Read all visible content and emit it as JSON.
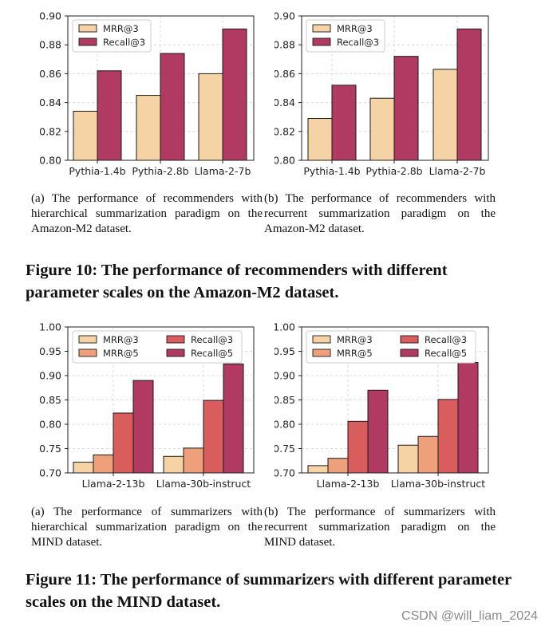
{
  "chart_data": [
    {
      "type": "bar",
      "categories": [
        "Pythia-1.4b",
        "Pythia-2.8b",
        "Llama-2-7b"
      ],
      "series": [
        {
          "name": "MRR@3",
          "values": [
            0.834,
            0.845,
            0.86
          ]
        },
        {
          "name": "Recall@3",
          "values": [
            0.862,
            0.874,
            0.891
          ]
        }
      ],
      "ylim": [
        0.8,
        0.9
      ],
      "yticks": [
        "0.80",
        "0.82",
        "0.84",
        "0.86",
        "0.88",
        "0.90"
      ],
      "colors": [
        "#f5d3a4",
        "#b13a63"
      ],
      "grid": true,
      "legend": "top-left",
      "caption": "(a) The performance of recommenders with hierarchical summarization paradigm on the Amazon-M2 dataset."
    },
    {
      "type": "bar",
      "categories": [
        "Pythia-1.4b",
        "Pythia-2.8b",
        "Llama-2-7b"
      ],
      "series": [
        {
          "name": "MRR@3",
          "values": [
            0.829,
            0.843,
            0.863
          ]
        },
        {
          "name": "Recall@3",
          "values": [
            0.852,
            0.872,
            0.891
          ]
        }
      ],
      "ylim": [
        0.8,
        0.9
      ],
      "yticks": [
        "0.80",
        "0.82",
        "0.84",
        "0.86",
        "0.88",
        "0.90"
      ],
      "colors": [
        "#f5d3a4",
        "#b13a63"
      ],
      "grid": true,
      "legend": "top-left",
      "caption": "(b) The performance of recommenders with recurrent summarization paradigm on the Amazon-M2 dataset."
    },
    {
      "type": "bar",
      "categories": [
        "Llama-2-13b",
        "Llama-30b-instruct"
      ],
      "series": [
        {
          "name": "MRR@3",
          "values": [
            0.722,
            0.734
          ]
        },
        {
          "name": "MRR@5",
          "values": [
            0.737,
            0.751
          ]
        },
        {
          "name": "Recall@3",
          "values": [
            0.823,
            0.849
          ]
        },
        {
          "name": "Recall@5",
          "values": [
            0.89,
            0.924
          ]
        }
      ],
      "ylim": [
        0.7,
        1.0
      ],
      "yticks": [
        "0.70",
        "0.75",
        "0.80",
        "0.85",
        "0.90",
        "0.95",
        "1.00"
      ],
      "colors": [
        "#f5d3a4",
        "#eea07a",
        "#d95d5d",
        "#b13a63"
      ],
      "grid": true,
      "legend": "top-left",
      "caption": "(a) The performance of summarizers with hierarchical summarization paradigm on the MIND dataset."
    },
    {
      "type": "bar",
      "categories": [
        "Llama-2-13b",
        "Llama-30b-instruct"
      ],
      "series": [
        {
          "name": "MRR@3",
          "values": [
            0.715,
            0.757
          ]
        },
        {
          "name": "MRR@5",
          "values": [
            0.73,
            0.775
          ]
        },
        {
          "name": "Recall@3",
          "values": [
            0.806,
            0.851
          ]
        },
        {
          "name": "Recall@5",
          "values": [
            0.87,
            0.927
          ]
        }
      ],
      "ylim": [
        0.7,
        1.0
      ],
      "yticks": [
        "0.70",
        "0.75",
        "0.80",
        "0.85",
        "0.90",
        "0.95",
        "1.00"
      ],
      "colors": [
        "#f5d3a4",
        "#eea07a",
        "#d95d5d",
        "#b13a63"
      ],
      "grid": true,
      "legend": "top-left",
      "caption": "(b) The performance of summarizers with recurrent summarization paradigm on the MIND dataset."
    }
  ],
  "figures": {
    "fig10_title": "Figure 10: The performance of recommenders with different parameter scales on the Amazon-M2 dataset.",
    "fig11_title": "Figure 11: The performance of summarizers with different parameter scales on the MIND dataset."
  },
  "watermark": "CSDN @will_liam_2024"
}
